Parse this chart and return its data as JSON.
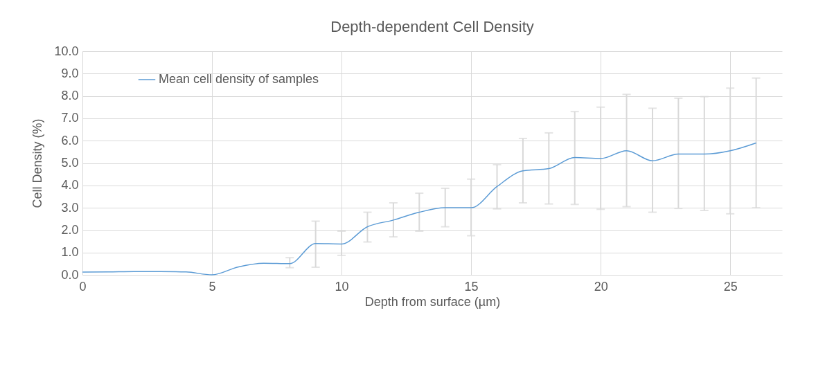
{
  "chart_data": {
    "type": "line",
    "title": "Depth-dependent Cell Density",
    "xlabel": "Depth from surface (µm)",
    "ylabel": "Cell Density (%)",
    "x": [
      0,
      1,
      2,
      3,
      4,
      5,
      6,
      7,
      8,
      9,
      10,
      11,
      12,
      13,
      14,
      15,
      16,
      17,
      18,
      19,
      20,
      21,
      22,
      23,
      24,
      25,
      26
    ],
    "series": [
      {
        "name": "Mean cell density of samples",
        "color": "#5b9bd5",
        "values": [
          0.12,
          0.13,
          0.15,
          0.15,
          0.13,
          0.0,
          0.35,
          0.52,
          0.5,
          1.4,
          1.38,
          2.15,
          2.45,
          2.8,
          3.0,
          3.0,
          3.95,
          4.65,
          4.75,
          5.25,
          5.2,
          5.55,
          5.1,
          5.4,
          5.4,
          5.55,
          5.9
        ],
        "errors": [
          null,
          null,
          null,
          null,
          null,
          null,
          null,
          null,
          [
            0.32,
            0.77
          ],
          [
            0.34,
            2.4
          ],
          [
            0.87,
            1.95
          ],
          [
            1.47,
            2.8
          ],
          [
            1.7,
            3.22
          ],
          [
            1.95,
            3.65
          ],
          [
            2.15,
            3.87
          ],
          [
            1.75,
            4.28
          ],
          [
            2.95,
            4.93
          ],
          [
            3.22,
            6.1
          ],
          [
            3.17,
            6.35
          ],
          [
            3.15,
            7.3
          ],
          [
            2.93,
            7.5
          ],
          [
            3.05,
            8.07
          ],
          [
            2.8,
            7.45
          ],
          [
            2.97,
            7.9
          ],
          [
            2.88,
            7.97
          ],
          [
            2.73,
            8.35
          ],
          [
            3.0,
            8.8
          ]
        ]
      }
    ],
    "xlim": [
      0,
      27
    ],
    "xticks": [
      0,
      5,
      10,
      15,
      20,
      25
    ],
    "ylim": [
      0,
      10
    ],
    "yticks": [
      {
        "value": 0,
        "label": "0.0"
      },
      {
        "value": 1,
        "label": "1.0"
      },
      {
        "value": 2,
        "label": "2.0"
      },
      {
        "value": 3,
        "label": "3.0"
      },
      {
        "value": 4,
        "label": "4.0"
      },
      {
        "value": 5,
        "label": "5.0"
      },
      {
        "value": 6,
        "label": "6.0"
      },
      {
        "value": 7,
        "label": "7.0"
      },
      {
        "value": 8,
        "label": "8.0"
      },
      {
        "value": 9,
        "label": "9.0"
      },
      {
        "value": 10,
        "label": "10.0"
      }
    ],
    "grid": true,
    "legend": "top left",
    "marker": "none",
    "line_style": "solid"
  }
}
